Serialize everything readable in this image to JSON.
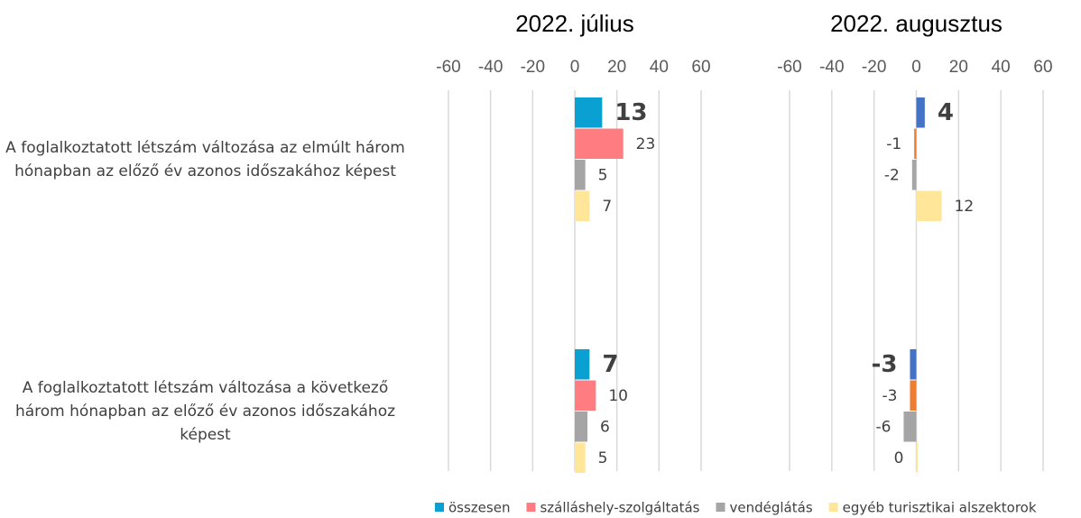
{
  "chart_data": [
    {
      "type": "bar",
      "orientation": "horizontal",
      "title": "2022. július",
      "categories": [
        "A foglalkoztatott létszám változása az elmúlt három hónapban az előző év azonos időszakához képest",
        "A foglalkoztatott létszám változása a következő három hónapban az előző év azonos időszakához képest"
      ],
      "xlim": [
        -60,
        60
      ],
      "xticks": [
        -60,
        -40,
        -20,
        0,
        20,
        40,
        60
      ],
      "grid": true,
      "series": [
        {
          "name": "összesen",
          "color": "#0aa0d2",
          "values": [
            13,
            7
          ]
        },
        {
          "name": "szálláshely-szolgáltatás",
          "color": "#ff7c80",
          "values": [
            23,
            10
          ]
        },
        {
          "name": "vendéglátás",
          "color": "#a5a5a5",
          "values": [
            5,
            6
          ]
        },
        {
          "name": "egyéb turisztikai alszektorok",
          "color": "#ffe699",
          "values": [
            7,
            5
          ]
        }
      ]
    },
    {
      "type": "bar",
      "orientation": "horizontal",
      "title": "2022. augusztus",
      "xlim": [
        -60,
        60
      ],
      "xticks": [
        -60,
        -40,
        -20,
        0,
        20,
        40,
        60
      ],
      "grid": true,
      "series": [
        {
          "color": "#4472c4",
          "values": [
            4,
            -3
          ]
        },
        {
          "color": "#ed7d31",
          "values": [
            -1,
            -3
          ]
        },
        {
          "color": "#a5a5a5",
          "values": [
            -2,
            -6
          ]
        },
        {
          "color": "#ffe699",
          "values": [
            12,
            0
          ]
        }
      ]
    }
  ]
}
